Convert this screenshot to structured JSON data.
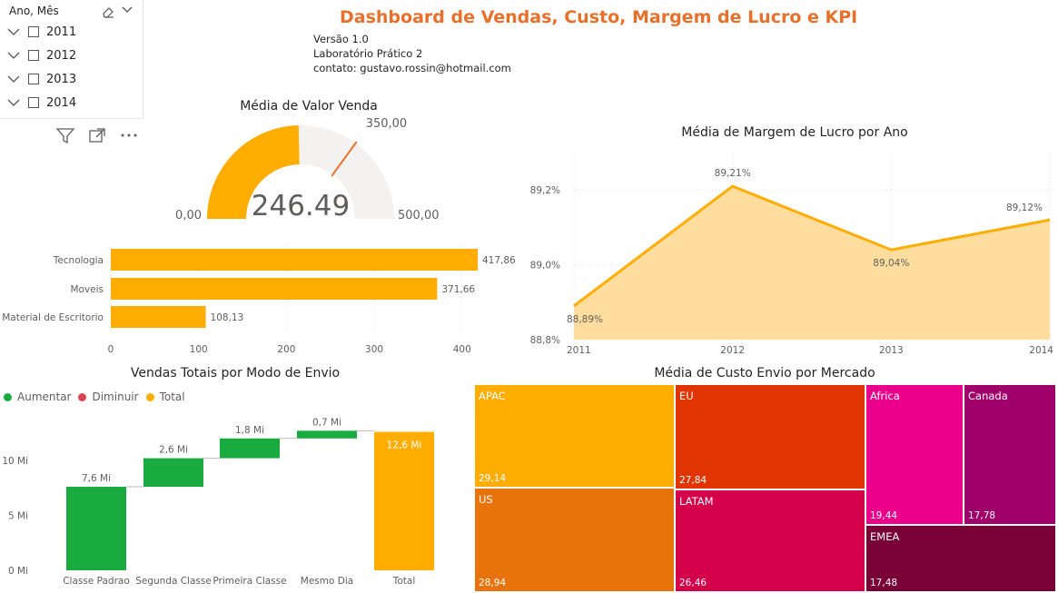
{
  "page_title": "Dashboard de Vendas, Custo, Margem de Lucro e KPI",
  "info_lines": [
    "Versão 1.0",
    "Laboratório Prático 2",
    "contato: gustavo.rossin@hotmail.com"
  ],
  "slicer": {
    "title": "Ano, Mês",
    "items": [
      "2011",
      "2012",
      "2013",
      "2014"
    ],
    "clear_icon": "eraser-icon",
    "expand_icon": "chevron-down-icon"
  },
  "visual_header_icons": [
    "filter-icon",
    "focus-mode-icon",
    "more-options-icon"
  ],
  "colors": {
    "accent": "#FFAD00",
    "title": "#E8702A",
    "increase": "#1AAB40",
    "decrease": "#D64554",
    "total": "#FFAD00",
    "area_fill": "#FEDD9F"
  },
  "chart_data": [
    {
      "id": "gauge",
      "type": "gauge",
      "title": "Média de Valor Venda",
      "value": 246.49,
      "value_label": "246.49",
      "min": 0,
      "min_label": "0,00",
      "max": 500,
      "max_label": "500,00",
      "target": 350,
      "target_label": "350,00"
    },
    {
      "id": "category-bars",
      "type": "bar",
      "orientation": "horizontal",
      "categories": [
        "Tecnologia",
        "Moveis",
        "Material de Escritorio"
      ],
      "values": [
        417.86,
        371.66,
        108.13
      ],
      "value_labels": [
        "417,86",
        "371,66",
        "108,13"
      ],
      "xlim": [
        0,
        430
      ],
      "x_ticks": [
        0,
        100,
        200,
        300,
        400
      ],
      "grid": true
    },
    {
      "id": "margin-line",
      "type": "area",
      "title": "Média de Margem de Lucro por Ano",
      "x": [
        "2011",
        "2012",
        "2013",
        "2014"
      ],
      "values": [
        88.89,
        89.21,
        89.04,
        89.12
      ],
      "value_labels": [
        "88,89%",
        "89,21%",
        "89,04%",
        "89,12%"
      ],
      "ylim": [
        88.8,
        89.3
      ],
      "y_ticks": [
        "88,8%",
        "89,0%",
        "89,2%"
      ],
      "y_tick_values": [
        88.8,
        89.0,
        89.2
      ],
      "grid": true
    },
    {
      "id": "waterfall",
      "type": "waterfall",
      "title": "Vendas Totais por Modo de Envio",
      "legend": [
        "Aumentar",
        "Diminuir",
        "Total"
      ],
      "categories": [
        "Classe Padrao",
        "Segunda Classe",
        "Primeira Classe",
        "Mesmo Dia",
        "Total"
      ],
      "values": [
        7.6,
        2.6,
        1.8,
        0.7,
        12.6
      ],
      "value_labels": [
        "7,6 Mi",
        "2,6 Mi",
        "1,8 Mi",
        "0,7 Mi",
        "12,6 Mi"
      ],
      "ylim": [
        0,
        14
      ],
      "y_ticks": [
        "0 Mi",
        "5 Mi",
        "10 Mi"
      ],
      "y_tick_values": [
        0,
        5,
        10
      ]
    },
    {
      "id": "treemap",
      "type": "treemap",
      "title": "Média de Custo Envio por Mercado",
      "items": [
        {
          "name": "APAC",
          "value": 29.14,
          "label": "29,14",
          "color": "#FFAD00"
        },
        {
          "name": "US",
          "value": 28.94,
          "label": "28,94",
          "color": "#E8730A"
        },
        {
          "name": "EU",
          "value": 27.84,
          "label": "27,84",
          "color": "#E03500"
        },
        {
          "name": "LATAM",
          "value": 26.46,
          "label": "26,46",
          "color": "#D4004A"
        },
        {
          "name": "Africa",
          "value": 19.44,
          "label": "19,44",
          "color": "#EB008C"
        },
        {
          "name": "Canada",
          "value": 17.78,
          "label": "17,78",
          "color": "#A0006A"
        },
        {
          "name": "EMEA",
          "value": 17.48,
          "label": "17,48",
          "color": "#7A0038"
        }
      ]
    }
  ]
}
